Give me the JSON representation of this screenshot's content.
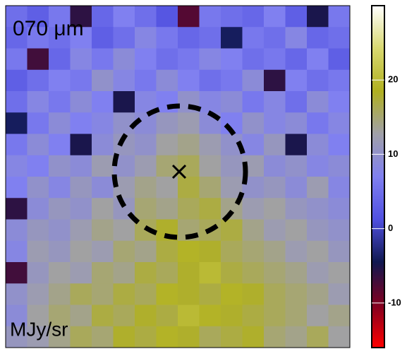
{
  "chart_data": {
    "type": "heatmap",
    "title": "070 μm",
    "unit_label": "MJy/sr",
    "clim": [
      -16,
      30
    ],
    "colorbar_ticks": [
      20,
      10,
      0,
      -10
    ],
    "colormap": [
      "#ff0000",
      "#800020",
      "#101850",
      "#5050e0",
      "#8080f0",
      "#a0a0a8",
      "#b0b020",
      "#d8d870",
      "#ffffff"
    ],
    "values": [
      [
        5,
        3,
        6,
        -6,
        4,
        7,
        5,
        2,
        -8,
        6,
        5,
        4,
        7,
        3,
        -5,
        6
      ],
      [
        4,
        6,
        5,
        7,
        3,
        5,
        8,
        6,
        4,
        5,
        -4,
        6,
        5,
        8,
        4,
        5
      ],
      [
        6,
        -7,
        4,
        8,
        6,
        9,
        7,
        5,
        6,
        8,
        7,
        5,
        6,
        4,
        7,
        3
      ],
      [
        3,
        5,
        7,
        6,
        10,
        8,
        6,
        9,
        7,
        5,
        6,
        9,
        -6,
        7,
        5,
        6
      ],
      [
        5,
        8,
        6,
        9,
        7,
        -5,
        8,
        7,
        10,
        8,
        9,
        6,
        8,
        5,
        9,
        7
      ],
      [
        -4,
        6,
        9,
        7,
        8,
        10,
        9,
        11,
        12,
        9,
        7,
        10,
        8,
        9,
        6,
        8
      ],
      [
        6,
        9,
        7,
        -5,
        9,
        11,
        10,
        13,
        14,
        12,
        10,
        8,
        11,
        -5,
        9,
        7
      ],
      [
        8,
        7,
        10,
        9,
        12,
        10,
        12,
        15,
        16,
        13,
        11,
        12,
        9,
        10,
        8,
        9
      ],
      [
        7,
        10,
        8,
        11,
        9,
        12,
        14,
        13,
        17,
        15,
        12,
        10,
        11,
        9,
        12,
        8
      ],
      [
        -6,
        9,
        11,
        10,
        13,
        11,
        15,
        14,
        16,
        17,
        14,
        12,
        13,
        11,
        10,
        9
      ],
      [
        9,
        11,
        10,
        12,
        14,
        13,
        16,
        18,
        15,
        16,
        17,
        14,
        12,
        13,
        11,
        10
      ],
      [
        8,
        12,
        11,
        13,
        12,
        15,
        14,
        17,
        19,
        18,
        16,
        15,
        14,
        12,
        13,
        11
      ],
      [
        -7,
        11,
        13,
        12,
        15,
        14,
        17,
        16,
        18,
        20,
        17,
        16,
        15,
        14,
        12,
        13
      ],
      [
        10,
        12,
        14,
        16,
        15,
        17,
        16,
        19,
        18,
        17,
        19,
        18,
        16,
        15,
        14,
        12
      ],
      [
        9,
        13,
        15,
        14,
        17,
        16,
        18,
        17,
        20,
        19,
        18,
        17,
        16,
        15,
        13,
        14
      ],
      [
        11,
        12,
        14,
        16,
        15,
        18,
        17,
        19,
        18,
        16,
        17,
        18,
        15,
        14,
        16,
        13
      ]
    ]
  }
}
